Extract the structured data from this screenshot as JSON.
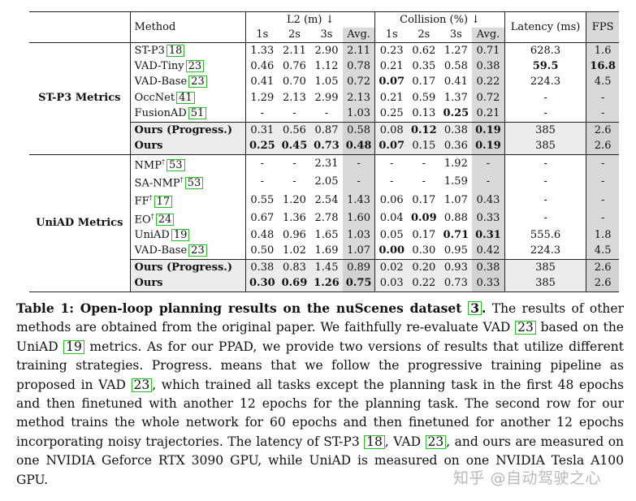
{
  "table": {
    "header": {
      "method": "Method",
      "l2": "L2 (m) ↓",
      "collision": "Collision (%) ↓",
      "latency": "Latency (ms)",
      "fps": "FPS",
      "sub": [
        "1s",
        "2s",
        "3s",
        "Avg.",
        "1s",
        "2s",
        "3s",
        "Avg."
      ]
    },
    "groups": [
      {
        "label": "ST-P3 Metrics",
        "rows": [
          {
            "name": "ST-P3",
            "sup": "",
            "cite": "18",
            "l2": [
              "1.33",
              "2.11",
              "2.90",
              "2.11"
            ],
            "col": [
              "0.23",
              "0.62",
              "1.27",
              "0.71"
            ],
            "lat": "628.3",
            "fps": "1.6"
          },
          {
            "name": "VAD-Tiny",
            "sup": "",
            "cite": "23",
            "l2": [
              "0.46",
              "0.76",
              "1.12",
              "0.78"
            ],
            "col": [
              "0.21",
              "0.35",
              "0.58",
              "0.38"
            ],
            "lat": "59.5",
            "fps": "16.8"
          },
          {
            "name": "VAD-Base",
            "sup": "",
            "cite": "23",
            "l2": [
              "0.41",
              "0.70",
              "1.05",
              "0.72"
            ],
            "col": [
              "0.07",
              "0.17",
              "0.41",
              "0.22"
            ],
            "lat": "224.3",
            "fps": "4.5"
          },
          {
            "name": "OccNet",
            "sup": "",
            "cite": "41",
            "l2": [
              "1.29",
              "2.13",
              "2.99",
              "2.13"
            ],
            "col": [
              "0.21",
              "0.59",
              "1.37",
              "0.72"
            ],
            "lat": "-",
            "fps": "-"
          },
          {
            "name": "FusionAD",
            "sup": "",
            "cite": "51",
            "l2": [
              "-",
              "-",
              "-",
              "1.03"
            ],
            "col": [
              "0.25",
              "0.13",
              "0.25",
              "0.21"
            ],
            "lat": "-",
            "fps": "-"
          },
          {
            "name": "Ours (Progress.)",
            "sup": "",
            "cite": "",
            "l2": [
              "0.31",
              "0.56",
              "0.87",
              "0.58"
            ],
            "col": [
              "0.08",
              "0.12",
              "0.38",
              "0.19"
            ],
            "lat": "385",
            "fps": "2.6"
          },
          {
            "name": "Ours",
            "sup": "",
            "cite": "",
            "l2": [
              "0.25",
              "0.45",
              "0.73",
              "0.48"
            ],
            "col": [
              "0.07",
              "0.15",
              "0.36",
              "0.19"
            ],
            "lat": "385",
            "fps": "2.6"
          }
        ]
      },
      {
        "label": "UniAD Metrics",
        "rows": [
          {
            "name": "NMP",
            "sup": "†",
            "cite": "53",
            "l2": [
              "-",
              "-",
              "2.31",
              "-"
            ],
            "col": [
              "-",
              "-",
              "1.92",
              "-"
            ],
            "lat": "-",
            "fps": "-"
          },
          {
            "name": "SA-NMP",
            "sup": "†",
            "cite": "53",
            "l2": [
              "-",
              "-",
              "2.05",
              "-"
            ],
            "col": [
              "-",
              "-",
              "1.59",
              "-"
            ],
            "lat": "-",
            "fps": "-"
          },
          {
            "name": "FF",
            "sup": "†",
            "cite": "17",
            "l2": [
              "0.55",
              "1.20",
              "2.54",
              "1.43"
            ],
            "col": [
              "0.06",
              "0.17",
              "1.07",
              "0.43"
            ],
            "lat": "-",
            "fps": "-"
          },
          {
            "name": "EO",
            "sup": "†",
            "cite": "24",
            "l2": [
              "0.67",
              "1.36",
              "2.78",
              "1.60"
            ],
            "col": [
              "0.04",
              "0.09",
              "0.88",
              "0.33"
            ],
            "lat": "-",
            "fps": "-"
          },
          {
            "name": "UniAD",
            "sup": "",
            "cite": "19",
            "l2": [
              "0.48",
              "0.96",
              "1.65",
              "1.03"
            ],
            "col": [
              "0.05",
              "0.17",
              "0.71",
              "0.31"
            ],
            "lat": "555.6",
            "fps": "1.8"
          },
          {
            "name": "VAD-Base",
            "sup": "",
            "cite": "23",
            "l2": [
              "0.50",
              "1.02",
              "1.69",
              "1.07"
            ],
            "col": [
              "0.00",
              "0.30",
              "0.95",
              "0.42"
            ],
            "lat": "224.3",
            "fps": "4.5"
          },
          {
            "name": "Ours (Progress.)",
            "sup": "",
            "cite": "",
            "l2": [
              "0.38",
              "0.83",
              "1.45",
              "0.89"
            ],
            "col": [
              "0.02",
              "0.20",
              "0.93",
              "0.38"
            ],
            "lat": "385",
            "fps": "2.6"
          },
          {
            "name": "Ours",
            "sup": "",
            "cite": "",
            "l2": [
              "0.30",
              "0.69",
              "1.26",
              "0.75"
            ],
            "col": [
              "0.03",
              "0.22",
              "0.73",
              "0.33"
            ],
            "lat": "385",
            "fps": "2.6"
          }
        ]
      }
    ]
  },
  "caption": {
    "title": "Table 1: Open-loop planning results on the nuScenes dataset ",
    "title_cite": "3",
    "title_end": ".",
    "p1": " The results of other methods are obtained from the original paper. We faithfully re-evaluate VAD ",
    "c1": "23",
    "p2": " based on the UniAD ",
    "c2": "19",
    "p3": " metrics. As for our PPAD, we provide two versions of results that utilize different training strategies. Progress. means that we follow the progressive training pipeline as proposed in VAD ",
    "c3": "23",
    "p4": ", which trained all tasks except the planning task in the first 48 epochs and then finetuned with another 12 epochs for the planning task. The second row for our method trains the whole network for 60 epochs and then finetuned for another 12 epochs incorporating noisy trajectories. The latency of ST-P3 ",
    "c4": "18",
    "p5": ", VAD ",
    "c5": "23",
    "p6": ", and ours are measured on one NVIDIA Geforce RTX 3090 GPU, while UniAD is measured on one NVIDIA Tesla A100 GPU."
  },
  "watermark": "知乎 @自动驾驶之心"
}
